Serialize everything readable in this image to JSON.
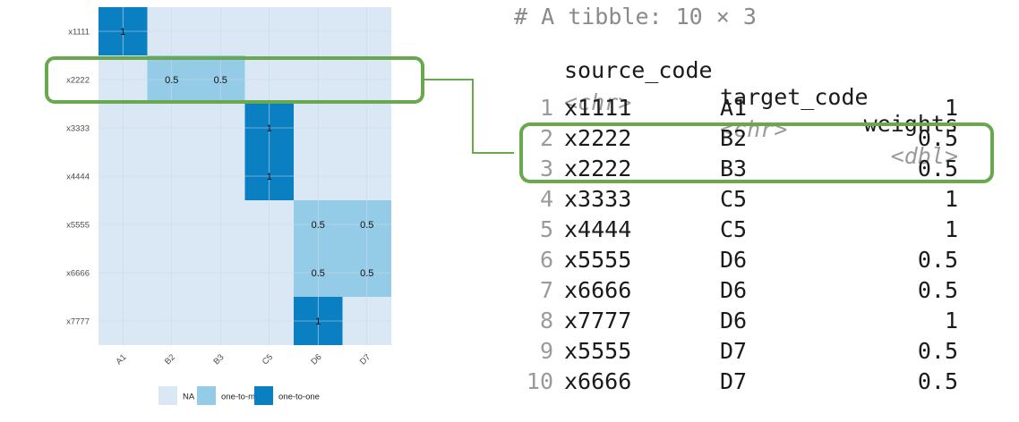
{
  "chart_data": {
    "type": "heatmap",
    "title": "",
    "xlabel": "",
    "ylabel": "",
    "x_categories": [
      "A1",
      "B2",
      "B3",
      "C5",
      "D6",
      "D7"
    ],
    "y_categories": [
      "x1111",
      "x2222",
      "x3333",
      "x4444",
      "x5555",
      "x6666",
      "x7777"
    ],
    "cells": [
      {
        "x": "A1",
        "y": "x1111",
        "value": 1,
        "label": "1",
        "category": "one-to-one"
      },
      {
        "x": "B2",
        "y": "x2222",
        "value": 0.5,
        "label": "0.5",
        "category": "one-to-many"
      },
      {
        "x": "B3",
        "y": "x2222",
        "value": 0.5,
        "label": "0.5",
        "category": "one-to-many"
      },
      {
        "x": "C5",
        "y": "x3333",
        "value": 1,
        "label": "1",
        "category": "one-to-one"
      },
      {
        "x": "C5",
        "y": "x4444",
        "value": 1,
        "label": "1",
        "category": "one-to-one"
      },
      {
        "x": "D6",
        "y": "x5555",
        "value": 0.5,
        "label": "0.5",
        "category": "one-to-many"
      },
      {
        "x": "D7",
        "y": "x5555",
        "value": 0.5,
        "label": "0.5",
        "category": "one-to-many"
      },
      {
        "x": "D6",
        "y": "x6666",
        "value": 0.5,
        "label": "0.5",
        "category": "one-to-many"
      },
      {
        "x": "D7",
        "y": "x6666",
        "value": 0.5,
        "label": "0.5",
        "category": "one-to-many"
      },
      {
        "x": "D6",
        "y": "x7777",
        "value": 1,
        "label": "1",
        "category": "one-to-one"
      }
    ],
    "legend": {
      "position": "bottom",
      "entries": [
        {
          "name": "NA",
          "color": "#dae8f5"
        },
        {
          "name": "one-to-many",
          "color": "#94cbe6"
        },
        {
          "name": "one-to-one",
          "color": "#0a80c2"
        }
      ]
    },
    "grid": true,
    "highlighted_row": "x2222"
  },
  "tibble": {
    "header": "# A tibble: 10 × 3",
    "columns": [
      {
        "name": "source_code",
        "type": "<chr>"
      },
      {
        "name": "target_code",
        "type": "<chr>"
      },
      {
        "name": "weights",
        "type": "<dbl>"
      }
    ],
    "rows": [
      {
        "index": "1",
        "source_code": "x1111",
        "target_code": "A1",
        "weights": "1"
      },
      {
        "index": "2",
        "source_code": "x2222",
        "target_code": "B2",
        "weights": "0.5"
      },
      {
        "index": "3",
        "source_code": "x2222",
        "target_code": "B3",
        "weights": "0.5"
      },
      {
        "index": "4",
        "source_code": "x3333",
        "target_code": "C5",
        "weights": "1"
      },
      {
        "index": "5",
        "source_code": "x4444",
        "target_code": "C5",
        "weights": "1"
      },
      {
        "index": "6",
        "source_code": "x5555",
        "target_code": "D6",
        "weights": "0.5"
      },
      {
        "index": "7",
        "source_code": "x6666",
        "target_code": "D6",
        "weights": "0.5"
      },
      {
        "index": "8",
        "source_code": "x7777",
        "target_code": "D6",
        "weights": "1"
      },
      {
        "index": "9",
        "source_code": "x5555",
        "target_code": "D7",
        "weights": "0.5"
      },
      {
        "index": "10",
        "source_code": "x6666",
        "target_code": "D7",
        "weights": "0.5"
      }
    ],
    "highlighted_rows": [
      "2",
      "3"
    ]
  },
  "colors": {
    "highlight": "#6aa84f",
    "grid_line": "#c9d9e8"
  }
}
